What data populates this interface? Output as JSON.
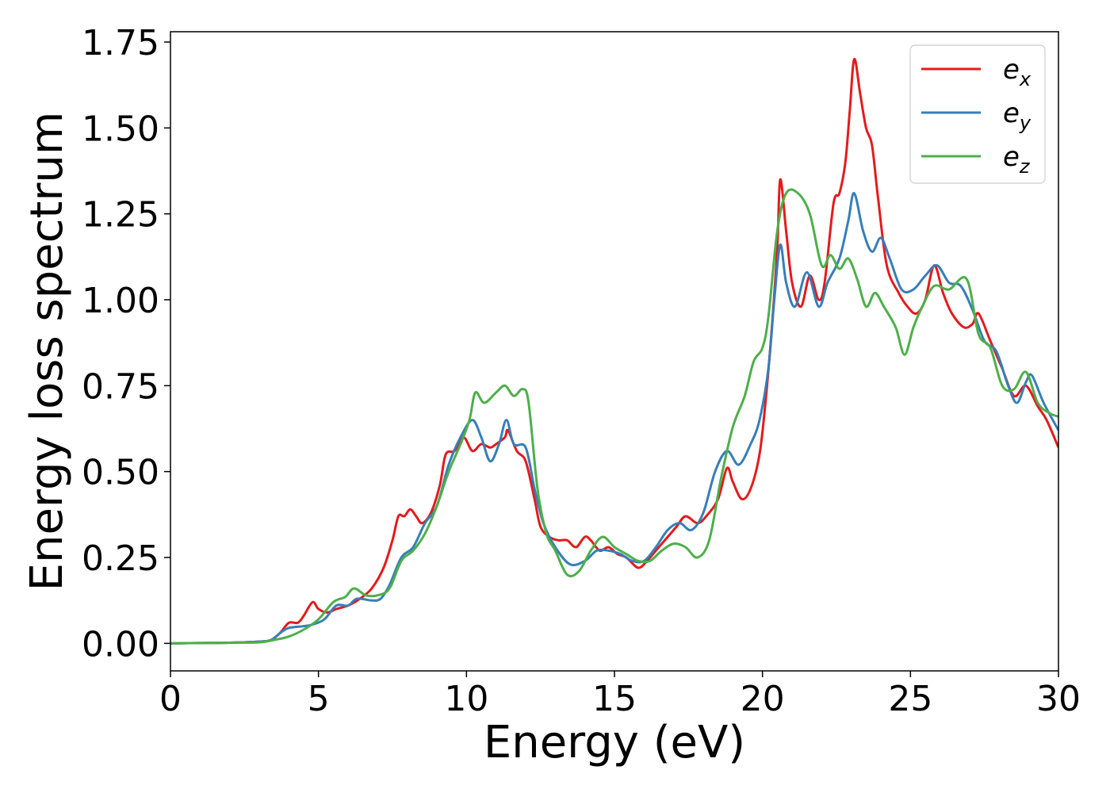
{
  "chart_data": {
    "type": "line",
    "title": "",
    "xlabel": "Energy (eV)",
    "ylabel": "Energy loss spectrum",
    "xlim": [
      0,
      30
    ],
    "ylim": [
      -0.08,
      1.78
    ],
    "xticks": [
      0,
      5,
      10,
      15,
      20,
      25,
      30
    ],
    "xtick_labels": [
      "0",
      "5",
      "10",
      "15",
      "20",
      "25",
      "30"
    ],
    "yticks": [
      0.0,
      0.25,
      0.5,
      0.75,
      1.0,
      1.25,
      1.5,
      1.75
    ],
    "ytick_labels": [
      "0.00",
      "0.25",
      "0.50",
      "0.75",
      "1.00",
      "1.25",
      "1.50",
      "1.75"
    ],
    "grid": false,
    "legend_position": "top-right",
    "series": [
      {
        "name": "e_x",
        "label_base": "e",
        "label_sub": "x",
        "color": "#e41a1c",
        "points": [
          [
            0,
            0
          ],
          [
            1,
            0.001
          ],
          [
            2,
            0.002
          ],
          [
            3,
            0.005
          ],
          [
            3.4,
            0.01
          ],
          [
            3.7,
            0.03
          ],
          [
            4.0,
            0.06
          ],
          [
            4.3,
            0.06
          ],
          [
            4.5,
            0.08
          ],
          [
            4.8,
            0.12
          ],
          [
            5.0,
            0.1
          ],
          [
            5.3,
            0.09
          ],
          [
            5.6,
            0.1
          ],
          [
            6.0,
            0.11
          ],
          [
            6.4,
            0.13
          ],
          [
            6.8,
            0.16
          ],
          [
            7.2,
            0.22
          ],
          [
            7.5,
            0.3
          ],
          [
            7.7,
            0.37
          ],
          [
            7.9,
            0.37
          ],
          [
            8.1,
            0.39
          ],
          [
            8.3,
            0.37
          ],
          [
            8.5,
            0.35
          ],
          [
            8.8,
            0.38
          ],
          [
            9.1,
            0.46
          ],
          [
            9.3,
            0.55
          ],
          [
            9.6,
            0.56
          ],
          [
            9.9,
            0.6
          ],
          [
            10.2,
            0.56
          ],
          [
            10.5,
            0.58
          ],
          [
            10.8,
            0.57
          ],
          [
            11.0,
            0.58
          ],
          [
            11.3,
            0.6
          ],
          [
            11.4,
            0.62
          ],
          [
            11.7,
            0.56
          ],
          [
            12.0,
            0.53
          ],
          [
            12.3,
            0.42
          ],
          [
            12.5,
            0.34
          ],
          [
            12.8,
            0.31
          ],
          [
            13.1,
            0.3
          ],
          [
            13.4,
            0.3
          ],
          [
            13.7,
            0.28
          ],
          [
            14.0,
            0.31
          ],
          [
            14.2,
            0.3
          ],
          [
            14.5,
            0.27
          ],
          [
            14.8,
            0.28
          ],
          [
            15.1,
            0.26
          ],
          [
            15.4,
            0.25
          ],
          [
            15.8,
            0.22
          ],
          [
            16.1,
            0.24
          ],
          [
            16.4,
            0.27
          ],
          [
            16.8,
            0.31
          ],
          [
            17.1,
            0.34
          ],
          [
            17.4,
            0.37
          ],
          [
            17.8,
            0.35
          ],
          [
            18.1,
            0.37
          ],
          [
            18.5,
            0.42
          ],
          [
            18.8,
            0.51
          ],
          [
            19.0,
            0.47
          ],
          [
            19.3,
            0.42
          ],
          [
            19.6,
            0.45
          ],
          [
            19.9,
            0.55
          ],
          [
            20.1,
            0.7
          ],
          [
            20.3,
            0.9
          ],
          [
            20.5,
            1.15
          ],
          [
            20.6,
            1.35
          ],
          [
            20.8,
            1.2
          ],
          [
            21.0,
            1.05
          ],
          [
            21.3,
            0.98
          ],
          [
            21.6,
            1.07
          ],
          [
            21.9,
            1.0
          ],
          [
            22.1,
            1.05
          ],
          [
            22.4,
            1.28
          ],
          [
            22.6,
            1.31
          ],
          [
            22.8,
            1.4
          ],
          [
            22.95,
            1.55
          ],
          [
            23.1,
            1.7
          ],
          [
            23.3,
            1.6
          ],
          [
            23.5,
            1.5
          ],
          [
            23.7,
            1.45
          ],
          [
            23.9,
            1.3
          ],
          [
            24.2,
            1.1
          ],
          [
            24.6,
            1.02
          ],
          [
            24.9,
            0.98
          ],
          [
            25.2,
            0.96
          ],
          [
            25.5,
            1.0
          ],
          [
            25.8,
            1.1
          ],
          [
            26.1,
            1.02
          ],
          [
            26.4,
            0.96
          ],
          [
            26.8,
            0.92
          ],
          [
            27.1,
            0.93
          ],
          [
            27.3,
            0.96
          ],
          [
            27.7,
            0.88
          ],
          [
            28.1,
            0.8
          ],
          [
            28.5,
            0.72
          ],
          [
            28.9,
            0.75
          ],
          [
            29.3,
            0.69
          ],
          [
            29.6,
            0.65
          ],
          [
            30,
            0.57
          ]
        ]
      },
      {
        "name": "e_y",
        "label_base": "e",
        "label_sub": "y",
        "color": "#377eb8",
        "points": [
          [
            0,
            0
          ],
          [
            1,
            0.001
          ],
          [
            2,
            0.002
          ],
          [
            3,
            0.005
          ],
          [
            3.4,
            0.01
          ],
          [
            3.7,
            0.03
          ],
          [
            4.0,
            0.045
          ],
          [
            4.5,
            0.05
          ],
          [
            4.8,
            0.055
          ],
          [
            5.2,
            0.07
          ],
          [
            5.6,
            0.11
          ],
          [
            6.0,
            0.11
          ],
          [
            6.3,
            0.13
          ],
          [
            6.8,
            0.125
          ],
          [
            7.1,
            0.13
          ],
          [
            7.4,
            0.17
          ],
          [
            7.8,
            0.25
          ],
          [
            8.2,
            0.28
          ],
          [
            8.6,
            0.35
          ],
          [
            9.0,
            0.4
          ],
          [
            9.4,
            0.52
          ],
          [
            9.8,
            0.6
          ],
          [
            10.2,
            0.65
          ],
          [
            10.5,
            0.6
          ],
          [
            10.8,
            0.53
          ],
          [
            11.1,
            0.58
          ],
          [
            11.35,
            0.65
          ],
          [
            11.6,
            0.58
          ],
          [
            12.0,
            0.57
          ],
          [
            12.3,
            0.45
          ],
          [
            12.6,
            0.35
          ],
          [
            13.0,
            0.28
          ],
          [
            13.5,
            0.23
          ],
          [
            14.0,
            0.24
          ],
          [
            14.4,
            0.27
          ],
          [
            14.8,
            0.27
          ],
          [
            15.2,
            0.26
          ],
          [
            15.6,
            0.24
          ],
          [
            16.0,
            0.24
          ],
          [
            16.4,
            0.28
          ],
          [
            16.8,
            0.33
          ],
          [
            17.2,
            0.35
          ],
          [
            17.6,
            0.33
          ],
          [
            18.0,
            0.38
          ],
          [
            18.4,
            0.5
          ],
          [
            18.8,
            0.56
          ],
          [
            19.2,
            0.52
          ],
          [
            19.6,
            0.58
          ],
          [
            19.9,
            0.65
          ],
          [
            20.2,
            0.8
          ],
          [
            20.4,
            1.0
          ],
          [
            20.6,
            1.16
          ],
          [
            20.8,
            1.05
          ],
          [
            21.1,
            0.98
          ],
          [
            21.5,
            1.08
          ],
          [
            21.9,
            0.98
          ],
          [
            22.2,
            1.05
          ],
          [
            22.6,
            1.12
          ],
          [
            22.9,
            1.23
          ],
          [
            23.1,
            1.31
          ],
          [
            23.4,
            1.2
          ],
          [
            23.7,
            1.14
          ],
          [
            24.0,
            1.18
          ],
          [
            24.3,
            1.12
          ],
          [
            24.7,
            1.03
          ],
          [
            25.1,
            1.03
          ],
          [
            25.5,
            1.07
          ],
          [
            25.9,
            1.1
          ],
          [
            26.3,
            1.05
          ],
          [
            26.7,
            1.04
          ],
          [
            27.1,
            0.97
          ],
          [
            27.5,
            0.88
          ],
          [
            27.9,
            0.85
          ],
          [
            28.3,
            0.75
          ],
          [
            28.6,
            0.7
          ],
          [
            28.9,
            0.76
          ],
          [
            29.1,
            0.78
          ],
          [
            29.5,
            0.7
          ],
          [
            30,
            0.62
          ]
        ]
      },
      {
        "name": "e_z",
        "label_base": "e",
        "label_sub": "z",
        "color": "#4daf4a",
        "points": [
          [
            0,
            0
          ],
          [
            1,
            0.001
          ],
          [
            2,
            0.002
          ],
          [
            3,
            0.003
          ],
          [
            3.5,
            0.01
          ],
          [
            4.0,
            0.02
          ],
          [
            4.5,
            0.04
          ],
          [
            5.0,
            0.07
          ],
          [
            5.5,
            0.12
          ],
          [
            5.9,
            0.135
          ],
          [
            6.2,
            0.16
          ],
          [
            6.6,
            0.14
          ],
          [
            7.0,
            0.14
          ],
          [
            7.4,
            0.16
          ],
          [
            7.8,
            0.24
          ],
          [
            8.2,
            0.27
          ],
          [
            8.6,
            0.32
          ],
          [
            9.0,
            0.4
          ],
          [
            9.4,
            0.5
          ],
          [
            9.8,
            0.58
          ],
          [
            10.1,
            0.65
          ],
          [
            10.3,
            0.73
          ],
          [
            10.6,
            0.7
          ],
          [
            11.0,
            0.73
          ],
          [
            11.3,
            0.75
          ],
          [
            11.6,
            0.72
          ],
          [
            11.9,
            0.74
          ],
          [
            12.1,
            0.7
          ],
          [
            12.4,
            0.45
          ],
          [
            12.7,
            0.32
          ],
          [
            13.0,
            0.27
          ],
          [
            13.4,
            0.2
          ],
          [
            13.8,
            0.21
          ],
          [
            14.2,
            0.27
          ],
          [
            14.6,
            0.31
          ],
          [
            15.0,
            0.28
          ],
          [
            15.4,
            0.26
          ],
          [
            15.8,
            0.24
          ],
          [
            16.2,
            0.24
          ],
          [
            16.6,
            0.27
          ],
          [
            17.0,
            0.29
          ],
          [
            17.4,
            0.28
          ],
          [
            17.8,
            0.25
          ],
          [
            18.2,
            0.3
          ],
          [
            18.6,
            0.48
          ],
          [
            19.0,
            0.63
          ],
          [
            19.4,
            0.72
          ],
          [
            19.7,
            0.82
          ],
          [
            20.0,
            0.86
          ],
          [
            20.2,
            0.95
          ],
          [
            20.5,
            1.2
          ],
          [
            20.8,
            1.31
          ],
          [
            21.2,
            1.31
          ],
          [
            21.6,
            1.25
          ],
          [
            22.0,
            1.1
          ],
          [
            22.3,
            1.13
          ],
          [
            22.6,
            1.09
          ],
          [
            22.9,
            1.12
          ],
          [
            23.2,
            1.06
          ],
          [
            23.5,
            0.98
          ],
          [
            23.8,
            1.02
          ],
          [
            24.1,
            0.98
          ],
          [
            24.5,
            0.92
          ],
          [
            24.8,
            0.84
          ],
          [
            25.1,
            0.92
          ],
          [
            25.4,
            0.98
          ],
          [
            25.8,
            1.04
          ],
          [
            26.3,
            1.03
          ],
          [
            26.9,
            1.06
          ],
          [
            27.3,
            0.9
          ],
          [
            27.7,
            0.86
          ],
          [
            28.1,
            0.75
          ],
          [
            28.5,
            0.74
          ],
          [
            28.9,
            0.79
          ],
          [
            29.3,
            0.7
          ],
          [
            29.7,
            0.67
          ],
          [
            30,
            0.66
          ]
        ]
      }
    ]
  }
}
